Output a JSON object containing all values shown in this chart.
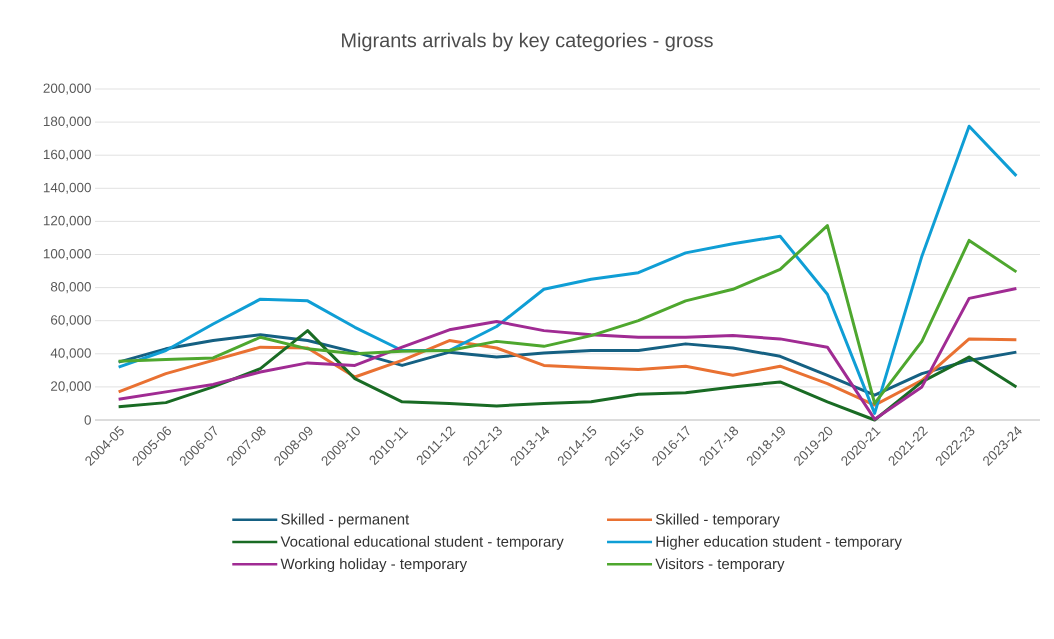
{
  "chart_data": {
    "type": "line",
    "title": "Migrants arrivals by key categories - gross",
    "categories": [
      "2004-05",
      "2005-06",
      "2006-07",
      "2007-08",
      "2008-09",
      "2009-10",
      "2010-11",
      "2011-12",
      "2012-13",
      "2013-14",
      "2014-15",
      "2015-16",
      "2016-17",
      "2017-18",
      "2018-19",
      "2019-20",
      "2020-21",
      "2021-22",
      "2022-23",
      "2023-24"
    ],
    "series": [
      {
        "name": "Skilled - permanent",
        "color": "#156082",
        "values": [
          35000,
          43000,
          48000,
          51500,
          48000,
          41000,
          33000,
          41000,
          38000,
          40500,
          42000,
          42000,
          46000,
          43500,
          38500,
          27000,
          15000,
          28000,
          36000,
          41000
        ]
      },
      {
        "name": "Skilled - temporary",
        "color": "#e97132",
        "values": [
          17000,
          28000,
          36000,
          44000,
          43500,
          26000,
          36000,
          48000,
          43500,
          33000,
          31500,
          30500,
          32500,
          27000,
          32500,
          22000,
          9000,
          24000,
          49000,
          48500
        ]
      },
      {
        "name": "Vocational educational student - temporary",
        "color": "#196b24",
        "values": [
          8000,
          10500,
          20000,
          31000,
          54000,
          25000,
          11000,
          10000,
          8500,
          10000,
          11000,
          15500,
          16500,
          20000,
          23000,
          11000,
          0,
          23000,
          38000,
          20000
        ]
      },
      {
        "name": "Higher education student - temporary",
        "color": "#0f9ed5",
        "values": [
          32000,
          42000,
          58000,
          73000,
          72000,
          56000,
          42000,
          42000,
          56500,
          79000,
          85000,
          89000,
          101000,
          106500,
          111000,
          76000,
          4000,
          99000,
          177500,
          147500
        ]
      },
      {
        "name": "Working holiday - temporary",
        "color": "#a02b93",
        "values": [
          12500,
          17000,
          21500,
          29000,
          34500,
          33000,
          44000,
          54500,
          59500,
          54000,
          51500,
          50000,
          50000,
          51000,
          49000,
          44000,
          500,
          20000,
          73500,
          79500
        ]
      },
      {
        "name": "Visitors - temporary",
        "color": "#4ea72e",
        "values": [
          35500,
          36500,
          37500,
          50000,
          43000,
          40000,
          41500,
          42000,
          47500,
          44500,
          51000,
          60000,
          72000,
          79000,
          91000,
          117500,
          10000,
          47500,
          108500,
          89500
        ]
      }
    ],
    "ylim": [
      0,
      200000
    ],
    "yticks": [
      {
        "value": 0,
        "label": "0"
      },
      {
        "value": 20000,
        "label": "20,000"
      },
      {
        "value": 40000,
        "label": "40,000"
      },
      {
        "value": 60000,
        "label": "60,000"
      },
      {
        "value": 80000,
        "label": "80,000"
      },
      {
        "value": 100000,
        "label": "100,000"
      },
      {
        "value": 120000,
        "label": "120,000"
      },
      {
        "value": 140000,
        "label": "140,000"
      },
      {
        "value": 160000,
        "label": "160,000"
      },
      {
        "value": 180000,
        "label": "180,000"
      },
      {
        "value": 200000,
        "label": "200,000"
      }
    ],
    "grid": "y",
    "legend": "bottom",
    "marker": "none",
    "line_style": "solid"
  }
}
